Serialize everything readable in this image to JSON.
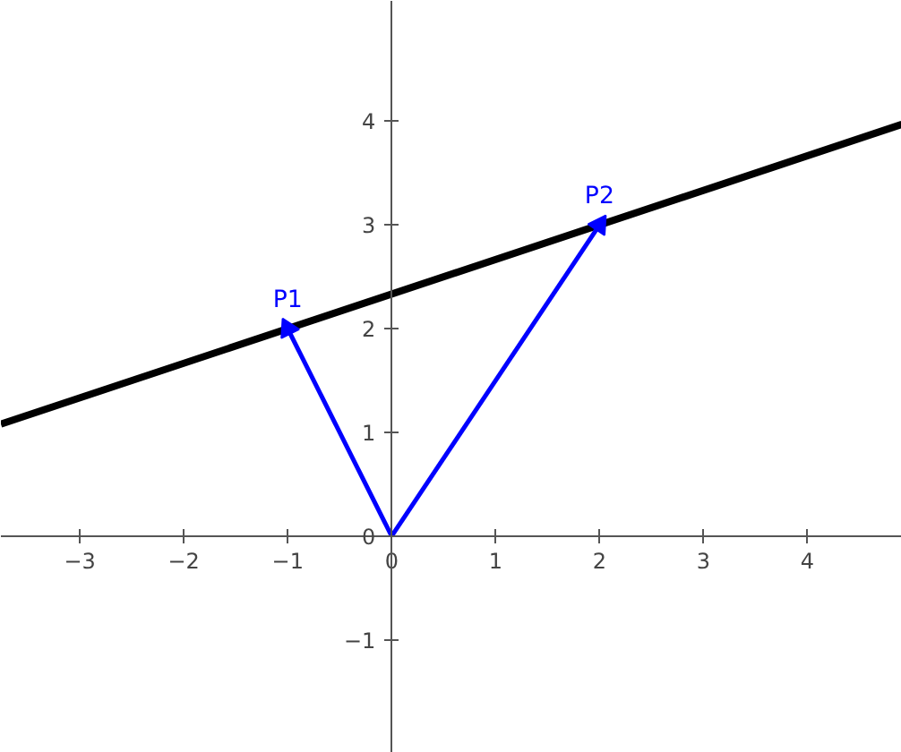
{
  "chart_data": {
    "type": "line",
    "series": [
      {
        "color": "#000000",
        "x": [
          -3.76,
          4.91
        ],
        "values": [
          1.08,
          3.97
        ]
      },
      {
        "color": "#0000ff",
        "x": [
          0,
          -1
        ],
        "values": [
          0,
          2
        ],
        "marker": "triangle"
      },
      {
        "color": "#0000ff",
        "x": [
          0,
          2
        ],
        "values": [
          0,
          3
        ],
        "marker": "triangle"
      }
    ],
    "annotations": [
      {
        "text": "P1",
        "x": -1,
        "y": 2
      },
      {
        "text": "P2",
        "x": 2,
        "y": 3
      }
    ],
    "xlim": [
      -3.76,
      4.91
    ],
    "ylim": [
      -2.09,
      5.16
    ],
    "xticks": [
      -3,
      -2,
      -1,
      0,
      1,
      2,
      3,
      4
    ],
    "yticks": [
      -1,
      0,
      1,
      2,
      3,
      4
    ],
    "grid": false
  }
}
